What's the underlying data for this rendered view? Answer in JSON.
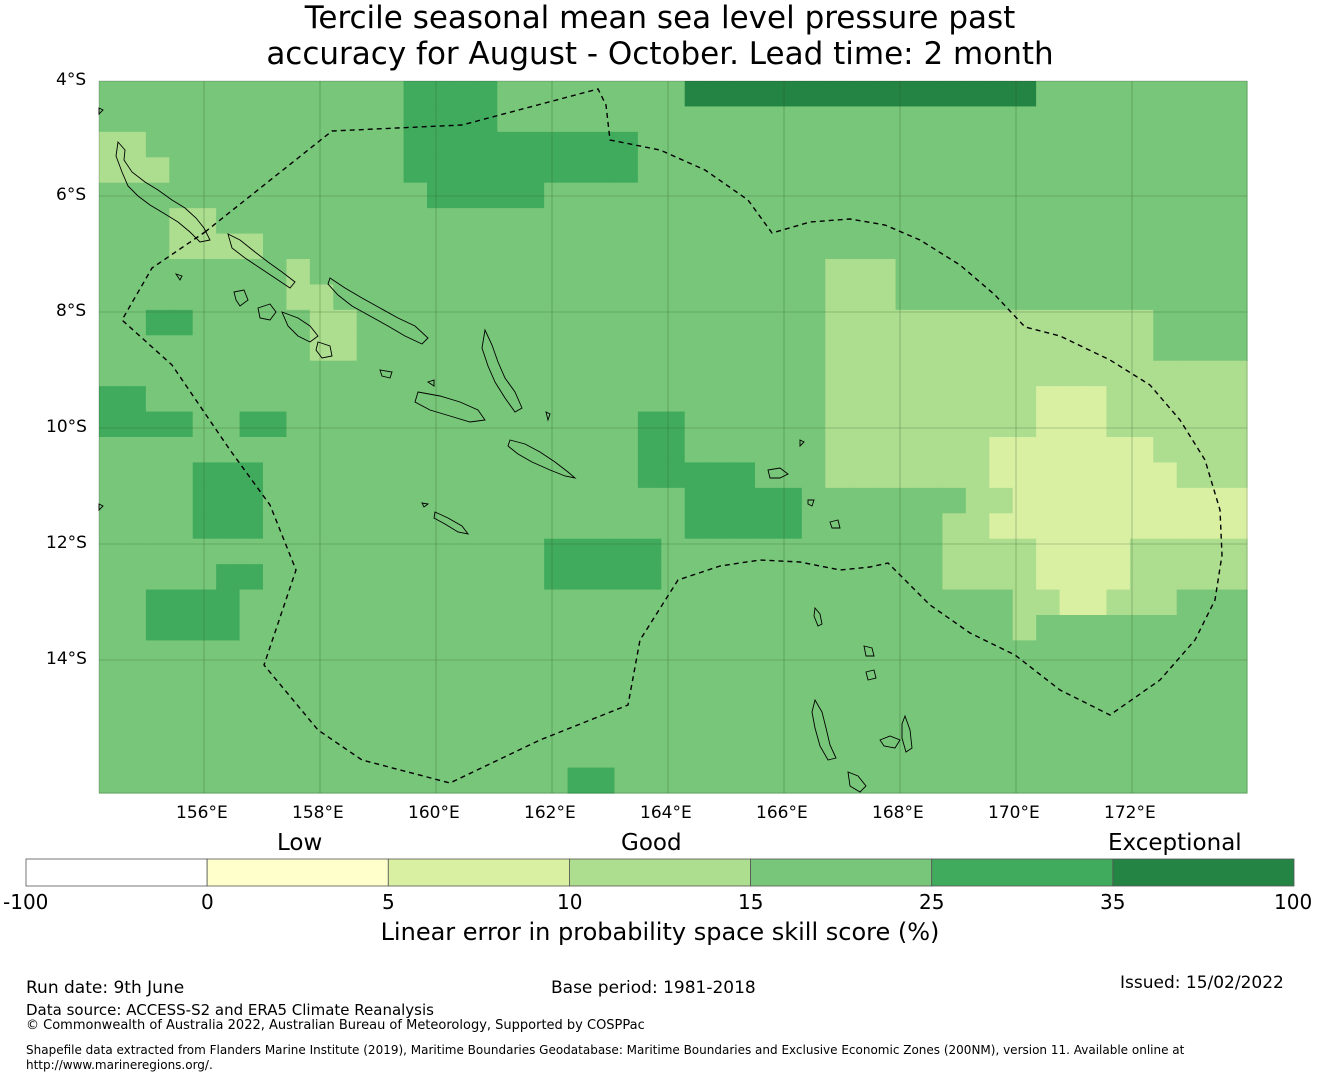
{
  "title_line1": "Tercile seasonal mean sea level pressure past",
  "title_line2": "accuracy for August - October. Lead time: 2 month",
  "lat_labels": [
    "4°S",
    "6°S",
    "8°S",
    "10°S",
    "12°S",
    "14°S"
  ],
  "lon_labels": [
    "156°E",
    "158°E",
    "160°E",
    "162°E",
    "164°E",
    "166°E",
    "168°E",
    "170°E",
    "172°E"
  ],
  "colorbar": {
    "category_low": "Low",
    "category_good": "Good",
    "category_exceptional": "Exceptional",
    "ticks": [
      "-100",
      "0",
      "5",
      "10",
      "15",
      "25",
      "35",
      "100"
    ],
    "colors": [
      "#ffffff",
      "#ffffcc",
      "#d9f0a3",
      "#addd8e",
      "#78c679",
      "#41ab5d",
      "#238443"
    ],
    "title": "Linear error in probability space skill score (%)"
  },
  "footer": {
    "run_date": "Run date: 9th June",
    "base_period": "Base period: 1981-2018",
    "issued": "Issued: 15/02/2022",
    "data_source": "Data source: ACCESS-S2 and ERA5 Climate Reanalysis",
    "copyright": "© Commonwealth of Australia 2022, Australian Bureau of Meteorology, Supported by COSPPac",
    "shapefile1": "Shapefile data extracted from Flanders Marine Institute (2019), Maritime Boundaries Geodatabase: Maritime Boundaries and Exclusive Economic Zones (200NM), version 11. Available online at",
    "shapefile2": "http://www.marineregions.org/."
  },
  "grid_rows": [
    "4444444444444555544444444666666666666666444444444",
    "4444444444444555544444444444444444444444444444444",
    "3344444444444555555555544444444444444444444444444",
    "3334444444444555555555544444444444444444444444444",
    "4444444444444455555444444444444444444444444444444",
    "4443344444444444444444444444444444444444444444444",
    "4443333444444444444444444444444444444444444444444",
    "4444444434444444444444444444444333444444444444444",
    "4444444433444444444444444444444333444444444444444",
    "4455444443344444444444444444444333333333333334444",
    "4444444443344444444444444444444333333333333334444",
    "4444444444444444444444444444444333333333333333333",
    "5544444444444444444444444444444333333333222333333",
    "5555445544444444444444455444444333333333222333333",
    "4444444444444444444444455444444333333322222223333",
    "4444555444444444444444455555444333333322222222333",
    "4444555444444444444444444555554444444332222222222",
    "4444555444444444444444444555554444443322222222222",
    "4444444444444444444555554444444444443333222233333",
    "4444455444444444444555554444444444443333222233333",
    "4455554444444444444444444444444444444443322333444",
    "4455554444444444444444444444444444444443444444444",
    "4444444444444444444444444444444444444444444444444",
    "4444444444444444444444444444444444444444444444444",
    "4444444444444444444444444444444444444444444444444",
    "4444444444444444444444444444444444444444444444444",
    "4444444444444444444444444444444444444444444444444",
    "4444444444444444444455444444444444444444444444444"
  ],
  "grid_rows_note_ignore": ""
}
